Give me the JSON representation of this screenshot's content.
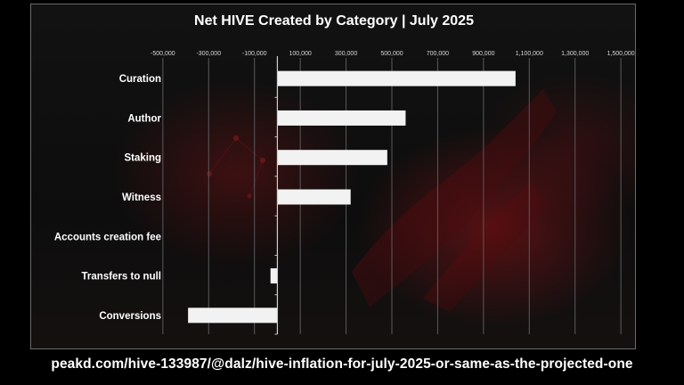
{
  "chart_data": {
    "type": "bar",
    "orientation": "horizontal",
    "title": "Net HIVE Created by Category | July 2025",
    "categories": [
      "Curation",
      "Author",
      "Staking",
      "Witness",
      "Accounts creation fee",
      "Transfers to null",
      "Conversions"
    ],
    "values": [
      1040000,
      560000,
      480000,
      320000,
      0,
      -30000,
      -390000
    ],
    "ticks": [
      -500000,
      -300000,
      -100000,
      100000,
      300000,
      500000,
      700000,
      900000,
      1100000,
      1300000,
      1500000
    ],
    "tick_labels": [
      "-500,000",
      "-300,000",
      "-100,000",
      "100,000",
      "300,000",
      "500,000",
      "700,000",
      "900,000",
      "1,100,000",
      "1,300,000",
      "1,500,000"
    ],
    "xlim": [
      -550000,
      1550000
    ],
    "xlabel": "",
    "ylabel": "",
    "grid": true,
    "bar_color": "#f2f2f2",
    "grid_color": "#5a5a5a"
  },
  "source_text": "peakd.com/hive-133987/@dalz/hive-inflation-for-july-2025-or-same-as-the-projected-one"
}
